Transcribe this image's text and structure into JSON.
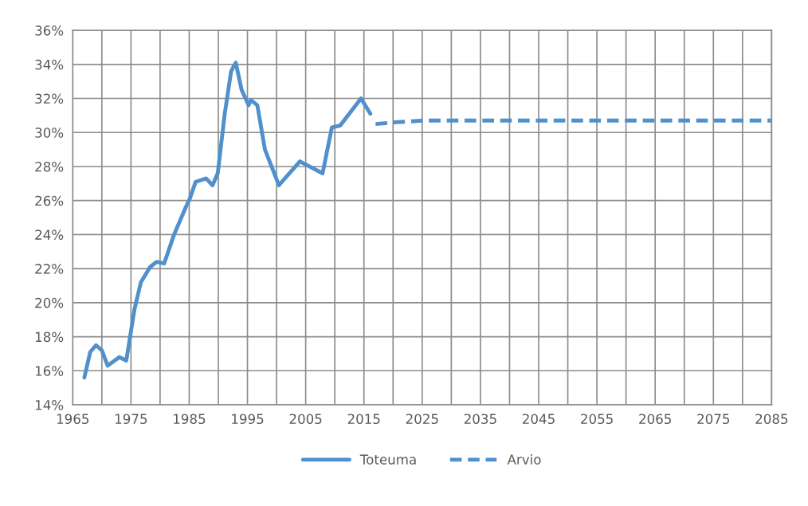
{
  "chart_data": {
    "type": "line",
    "series": [
      {
        "name": "Toteuma",
        "color": "#5090cc",
        "line_style": "solid",
        "x": [
          1967,
          1968,
          1969,
          1970,
          1971,
          1973,
          1974.2,
          1975.6,
          1976.7,
          1978.3,
          1979.4,
          1980.7,
          1982.4,
          1984.4,
          1985.1,
          1986.1,
          1987.9,
          1989,
          1989.9,
          1991.1,
          1992.2,
          1993,
          1994,
          1995.2,
          1995.6,
          1996.7,
          1998,
          2000.4,
          2004,
          2007.9,
          2009.5,
          2010.9,
          2014.5,
          2016.1
        ],
        "values": [
          15.6,
          17.1,
          17.5,
          17.2,
          16.3,
          16.8,
          16.6,
          19.6,
          21.2,
          22.1,
          22.4,
          22.3,
          24.0,
          25.6,
          26.1,
          27.1,
          27.3,
          26.9,
          27.6,
          31.1,
          33.6,
          34.1,
          32.5,
          31.6,
          31.9,
          31.6,
          29.0,
          26.9,
          28.3,
          27.6,
          30.3,
          30.4,
          32.0,
          31.1
        ]
      },
      {
        "name": "Arvio",
        "color": "#5090cc",
        "line_style": "dashed",
        "x": [
          2017,
          2020.5,
          2025,
          2085
        ],
        "values": [
          30.5,
          30.6,
          30.7,
          30.7
        ]
      }
    ],
    "xlim": [
      1965,
      2085
    ],
    "xticks": [
      1965,
      {
        "value": 1970,
        "label": null
      },
      1975,
      {
        "value": 1980,
        "label": null
      },
      1985,
      {
        "value": 1990,
        "label": null
      },
      1995,
      {
        "value": 2000,
        "label": null
      },
      2005,
      {
        "value": 2010,
        "label": null
      },
      2015,
      {
        "value": 2020,
        "label": null
      },
      2025,
      {
        "value": 2030,
        "label": null
      },
      2035,
      {
        "value": 2040,
        "label": null
      },
      2045,
      {
        "value": 2050,
        "label": null
      },
      2055,
      {
        "value": 2060,
        "label": null
      },
      2065,
      {
        "value": 2070,
        "label": null
      },
      2075,
      {
        "value": 2080,
        "label": null
      },
      2085
    ],
    "ylim": [
      14,
      36
    ],
    "yticks": [
      {
        "value": 14,
        "label": "14%"
      },
      {
        "value": 16,
        "label": "16%"
      },
      {
        "value": 18,
        "label": "18%"
      },
      {
        "value": 20,
        "label": "20%"
      },
      {
        "value": 22,
        "label": "22%"
      },
      {
        "value": 24,
        "label": "24%"
      },
      {
        "value": 26,
        "label": "26%"
      },
      {
        "value": 28,
        "label": "28%"
      },
      {
        "value": 30,
        "label": "30%"
      },
      {
        "value": 32,
        "label": "32%"
      },
      {
        "value": 34,
        "label": "34%"
      },
      {
        "value": 36,
        "label": "36%"
      }
    ],
    "grid": true,
    "legend": "bottom"
  }
}
